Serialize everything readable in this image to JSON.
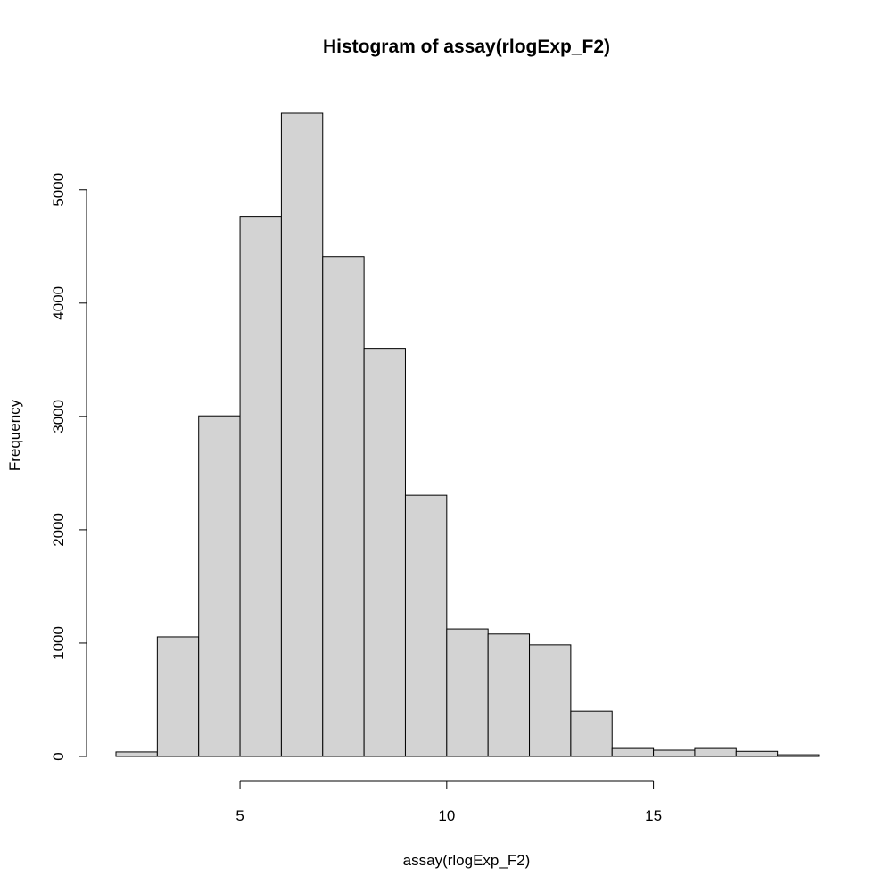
{
  "chart_data": {
    "type": "bar",
    "title": "Histogram of assay(rlogExp_F2)",
    "xlabel": "assay(rlogExp_F2)",
    "ylabel": "Frequency",
    "bins": [
      {
        "start": 2,
        "end": 3,
        "count": 40
      },
      {
        "start": 3,
        "end": 4,
        "count": 1055
      },
      {
        "start": 4,
        "end": 5,
        "count": 3005
      },
      {
        "start": 5,
        "end": 6,
        "count": 4765
      },
      {
        "start": 6,
        "end": 7,
        "count": 5675
      },
      {
        "start": 7,
        "end": 8,
        "count": 4410
      },
      {
        "start": 8,
        "end": 9,
        "count": 3600
      },
      {
        "start": 9,
        "end": 10,
        "count": 2305
      },
      {
        "start": 10,
        "end": 11,
        "count": 1125
      },
      {
        "start": 11,
        "end": 12,
        "count": 1080
      },
      {
        "start": 12,
        "end": 13,
        "count": 985
      },
      {
        "start": 13,
        "end": 14,
        "count": 400
      },
      {
        "start": 14,
        "end": 15,
        "count": 70
      },
      {
        "start": 15,
        "end": 16,
        "count": 55
      },
      {
        "start": 16,
        "end": 17,
        "count": 70
      },
      {
        "start": 17,
        "end": 18,
        "count": 45
      },
      {
        "start": 18,
        "end": 19,
        "count": 15
      }
    ],
    "xlim": [
      2,
      19
    ],
    "ylim": [
      0,
      5675
    ],
    "x_ticks": [
      5,
      10,
      15
    ],
    "x_tick_labels": [
      "5",
      "10",
      "15"
    ],
    "y_ticks": [
      0,
      1000,
      2000,
      3000,
      4000,
      5000
    ],
    "y_tick_labels": [
      "0",
      "1000",
      "2000",
      "3000",
      "4000",
      "5000"
    ],
    "bar_color": "#d3d3d3",
    "edge_color": "#000000",
    "grid": false,
    "legend": "none"
  }
}
